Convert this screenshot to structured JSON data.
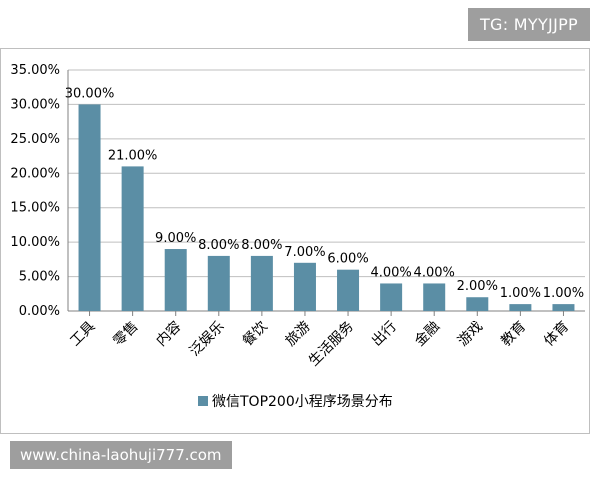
{
  "watermarks": {
    "top": "TG: MYYJJPP",
    "bottom": "www.china-laohuji777.com"
  },
  "chart_data": {
    "type": "bar",
    "categories": [
      "工具",
      "零售",
      "内容",
      "泛娱乐",
      "餐饮",
      "旅游",
      "生活服务",
      "出行",
      "金融",
      "游戏",
      "教育",
      "体育"
    ],
    "series": [
      {
        "name": "微信TOP200小程序场景分布",
        "values": [
          30,
          21,
          9,
          8,
          8,
          7,
          6,
          4,
          4,
          2,
          1,
          1
        ],
        "labels": [
          "30.00%",
          "21.00%",
          "9.00%",
          "8.00%",
          "8.00%",
          "7.00%",
          "6.00%",
          "4.00%",
          "4.00%",
          "2.00%",
          "1.00%",
          "1.00%"
        ]
      }
    ],
    "ylim": [
      0,
      35
    ],
    "yticks": [
      "0.00%",
      "5.00%",
      "10.00%",
      "15.00%",
      "20.00%",
      "25.00%",
      "30.00%",
      "35.00%"
    ],
    "grid": true,
    "legend_position": "bottom",
    "colors": {
      "bar": "#5b8ea5",
      "grid": "#bfbfbf",
      "axis": "#808080"
    }
  }
}
